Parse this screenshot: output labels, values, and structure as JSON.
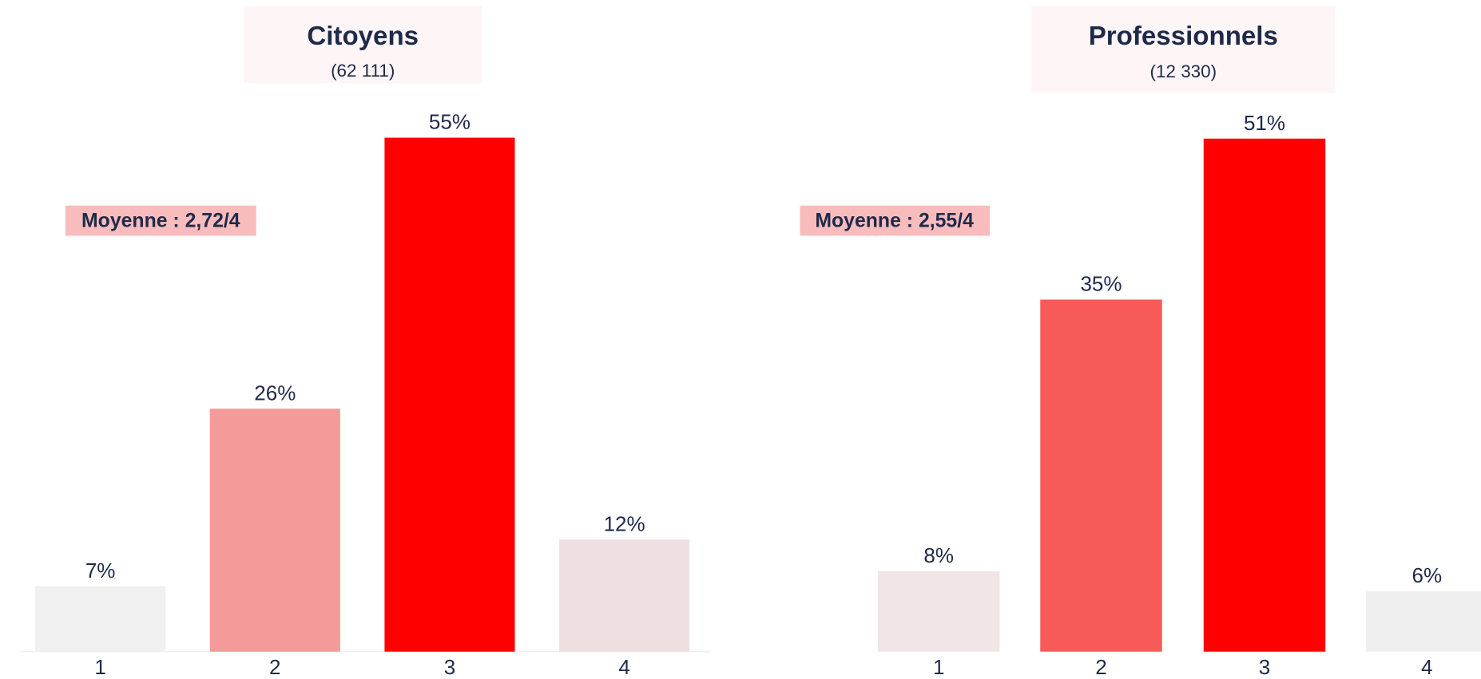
{
  "chart_data": [
    {
      "type": "bar",
      "title": "Citoyens",
      "subtitle": "(62 111)",
      "annotation": "Moyenne : 2,72/4",
      "categories": [
        "1",
        "2",
        "3",
        "4"
      ],
      "values": [
        7,
        26,
        55,
        12
      ],
      "value_labels": [
        "7%",
        "26%",
        "55%",
        "12%"
      ],
      "colors": [
        "#f0f0f0",
        "#f49a98",
        "#ff0000",
        "#f0dfe0"
      ],
      "ylim": [
        0,
        55
      ]
    },
    {
      "type": "bar",
      "title": "Professionnels",
      "subtitle": "(12 330)",
      "annotation": "Moyenne : 2,55/4",
      "categories": [
        "1",
        "2",
        "3",
        "4"
      ],
      "values": [
        8,
        35,
        51,
        6
      ],
      "value_labels": [
        "8%",
        "35%",
        "51%",
        "6%"
      ],
      "colors": [
        "#f0e6e6",
        "#f85a5a",
        "#ff0000",
        "#efefef"
      ],
      "ylim": [
        0,
        51
      ]
    }
  ]
}
